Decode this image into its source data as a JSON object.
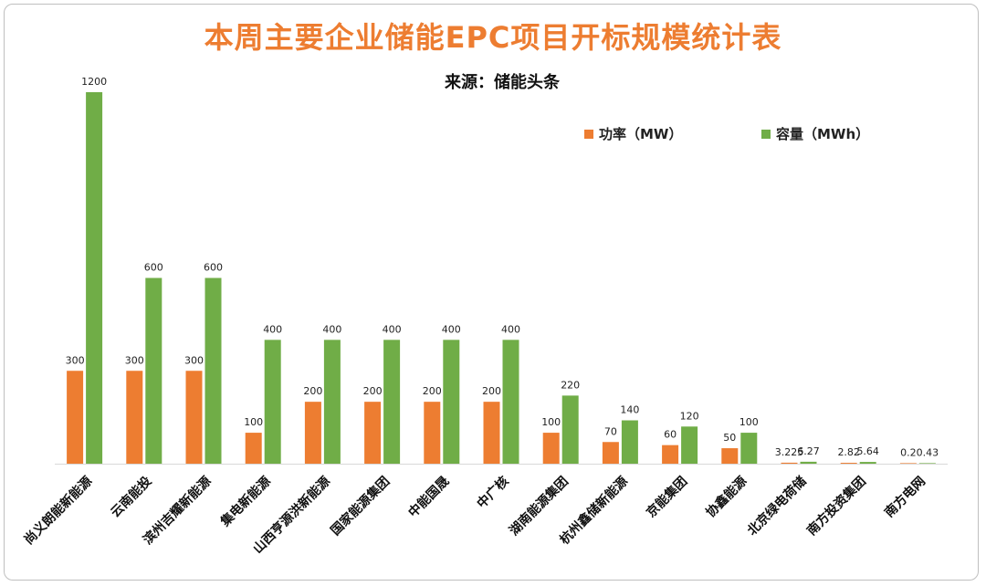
{
  "chart_data": {
    "type": "bar",
    "title": "本周主要企业储能EPC项目开标规模统计表",
    "subtitle": "来源：储能头条",
    "categories": [
      "尚义朗能新能源",
      "云南能投",
      "滨州吉耀新能源",
      "集电新能源",
      "山西亨源洪新能源",
      "国家能源集团",
      "中能国晟",
      "中广核",
      "湖南能源集团",
      "杭州鑫储新能源",
      "京能集团",
      "协鑫能源",
      "北京绿电荷储",
      "南方投资集团",
      "南方电网"
    ],
    "series": [
      {
        "name": "功率（MW）",
        "color": "#ed7d31",
        "values": [
          300,
          300,
          300,
          100,
          200,
          200,
          200,
          200,
          100,
          70,
          60,
          50,
          3.225,
          2.82,
          0.2
        ],
        "labels": [
          "300",
          "300",
          "300",
          "100",
          "200",
          "200",
          "200",
          "200",
          "100",
          "70",
          "60",
          "50",
          "3.225",
          "2.82",
          "0.2"
        ]
      },
      {
        "name": "容量（MWh）",
        "color": "#70ad47",
        "values": [
          1200,
          600,
          600,
          400,
          400,
          400,
          400,
          400,
          220,
          140,
          120,
          100,
          6.27,
          5.64,
          0.43
        ],
        "labels": [
          "1200",
          "600",
          "600",
          "400",
          "400",
          "400",
          "400",
          "400",
          "220",
          "140",
          "120",
          "100",
          "6.27",
          "5.64",
          "0.43"
        ]
      }
    ],
    "ylim": [
      0,
      1200
    ],
    "grid": false,
    "legend_position": "top-right",
    "title_color": "#ed7d31"
  }
}
